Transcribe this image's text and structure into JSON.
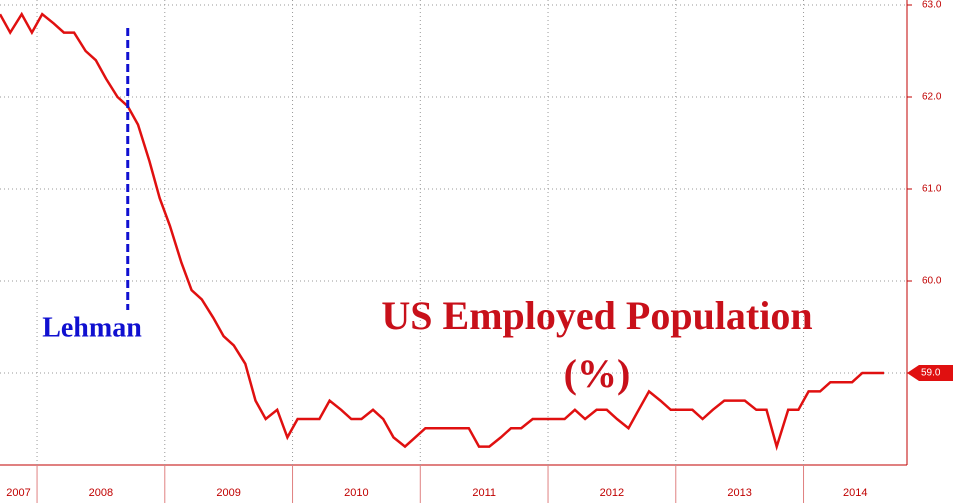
{
  "chart_data": {
    "type": "line",
    "title": "US Employed Population",
    "subtitle": "(%)",
    "annotation": {
      "text": "Lehman",
      "x": 2008.71
    },
    "categories": [
      "2007",
      "2008",
      "2009",
      "2010",
      "2011",
      "2012",
      "2013",
      "2014"
    ],
    "x": [
      2007.71,
      2007.79,
      2007.88,
      2007.96,
      2008.04,
      2008.13,
      2008.21,
      2008.29,
      2008.38,
      2008.46,
      2008.54,
      2008.63,
      2008.71,
      2008.79,
      2008.88,
      2008.96,
      2009.04,
      2009.13,
      2009.21,
      2009.29,
      2009.38,
      2009.46,
      2009.54,
      2009.63,
      2009.71,
      2009.79,
      2009.88,
      2009.96,
      2010.04,
      2010.13,
      2010.21,
      2010.29,
      2010.38,
      2010.46,
      2010.54,
      2010.63,
      2010.71,
      2010.79,
      2010.88,
      2010.96,
      2011.04,
      2011.13,
      2011.21,
      2011.29,
      2011.38,
      2011.46,
      2011.54,
      2011.63,
      2011.71,
      2011.79,
      2011.88,
      2011.96,
      2012.04,
      2012.13,
      2012.21,
      2012.29,
      2012.38,
      2012.46,
      2012.54,
      2012.63,
      2012.71,
      2012.79,
      2012.88,
      2012.96,
      2013.04,
      2013.13,
      2013.21,
      2013.29,
      2013.38,
      2013.46,
      2013.54,
      2013.63,
      2013.71,
      2013.79,
      2013.88,
      2013.96,
      2014.04,
      2014.13,
      2014.21,
      2014.29,
      2014.38,
      2014.46,
      2014.54,
      2014.63
    ],
    "series": [
      {
        "name": "US Employed Population",
        "color": "#e01010",
        "values": [
          62.9,
          62.7,
          62.9,
          62.7,
          62.9,
          62.8,
          62.7,
          62.7,
          62.5,
          62.4,
          62.2,
          62.0,
          61.9,
          61.7,
          61.3,
          60.9,
          60.6,
          60.2,
          59.9,
          59.8,
          59.6,
          59.4,
          59.3,
          59.1,
          58.7,
          58.5,
          58.6,
          58.3,
          58.5,
          58.5,
          58.5,
          58.7,
          58.6,
          58.5,
          58.5,
          58.6,
          58.5,
          58.3,
          58.2,
          58.3,
          58.4,
          58.4,
          58.4,
          58.4,
          58.4,
          58.2,
          58.2,
          58.3,
          58.4,
          58.4,
          58.5,
          58.5,
          58.5,
          58.5,
          58.6,
          58.5,
          58.6,
          58.6,
          58.5,
          58.4,
          58.6,
          58.8,
          58.7,
          58.6,
          58.6,
          58.6,
          58.5,
          58.6,
          58.7,
          58.7,
          58.7,
          58.6,
          58.6,
          58.2,
          58.6,
          58.6,
          58.8,
          58.8,
          58.9,
          58.9,
          58.9,
          59.0,
          59.0,
          59.0
        ]
      }
    ],
    "current_value": {
      "value": 59,
      "label": "59.0"
    },
    "xlim": [
      2007.71,
      2014.81
    ],
    "xticks": [
      2008,
      2009,
      2010,
      2011,
      2012,
      2013,
      2014
    ],
    "ylim": [
      58,
      63
    ],
    "yticks": [
      {
        "value": 63,
        "label": "63.0"
      },
      {
        "value": 62,
        "label": "62.0"
      },
      {
        "value": 61,
        "label": "61.0"
      },
      {
        "value": 60,
        "label": "60.0"
      },
      {
        "value": 59,
        "label": "59.0"
      }
    ],
    "grid": true
  }
}
